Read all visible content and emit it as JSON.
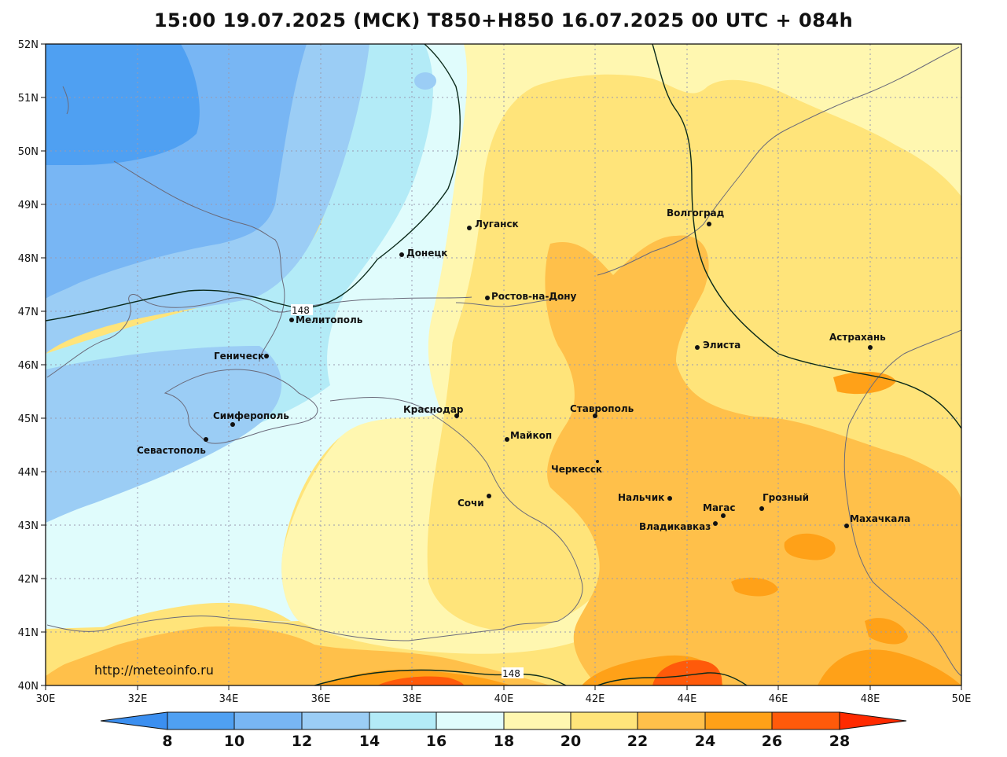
{
  "title": "15:00 19.07.2025 (МСК) T850+H850 16.07.2025 00 UTC + 084h",
  "credit": "http://meteoinfo.ru",
  "axes": {
    "lon_labels": [
      "30E",
      "32E",
      "34E",
      "36E",
      "38E",
      "40E",
      "42E",
      "44E",
      "46E",
      "48E",
      "50E"
    ],
    "lat_labels": [
      "40N",
      "41N",
      "42N",
      "43N",
      "44N",
      "45N",
      "46N",
      "47N",
      "48N",
      "49N",
      "50N",
      "51N",
      "52N"
    ]
  },
  "colorbar": {
    "labels": [
      "8",
      "10",
      "12",
      "14",
      "16",
      "18",
      "20",
      "22",
      "24",
      "26",
      "28"
    ],
    "colors": {
      "below_8": "#3b8ff0",
      "c8_10": "#4fa0f2",
      "c10_12": "#78b6f4",
      "c12_14": "#9bcdf5",
      "c14_16": "#b3ebf7",
      "c16_18": "#e0fcfc",
      "c18_20": "#fff7b0",
      "c20_22": "#ffe47a",
      "c22_24": "#ffc04a",
      "c24_26": "#ffa118",
      "c26_28": "#ff5a0a",
      "above_28": "#ff2a00"
    }
  },
  "contour_labels": [
    "148",
    "148"
  ],
  "cities": [
    {
      "name": "Луганск"
    },
    {
      "name": "Донецк"
    },
    {
      "name": "Волгоград"
    },
    {
      "name": "Ростов-на-Дону"
    },
    {
      "name": "Мелитополь"
    },
    {
      "name": "Геническ"
    },
    {
      "name": "Элиста"
    },
    {
      "name": "Астрахань"
    },
    {
      "name": "Симферополь"
    },
    {
      "name": "Краснодар"
    },
    {
      "name": "Ставрополь"
    },
    {
      "name": "Майкоп"
    },
    {
      "name": "Севастополь"
    },
    {
      "name": "Черкесск"
    },
    {
      "name": "Нальчик"
    },
    {
      "name": "Сочи"
    },
    {
      "name": "Магас"
    },
    {
      "name": "Грозный"
    },
    {
      "name": "Махачкала"
    },
    {
      "name": "Владикавказ"
    }
  ]
}
